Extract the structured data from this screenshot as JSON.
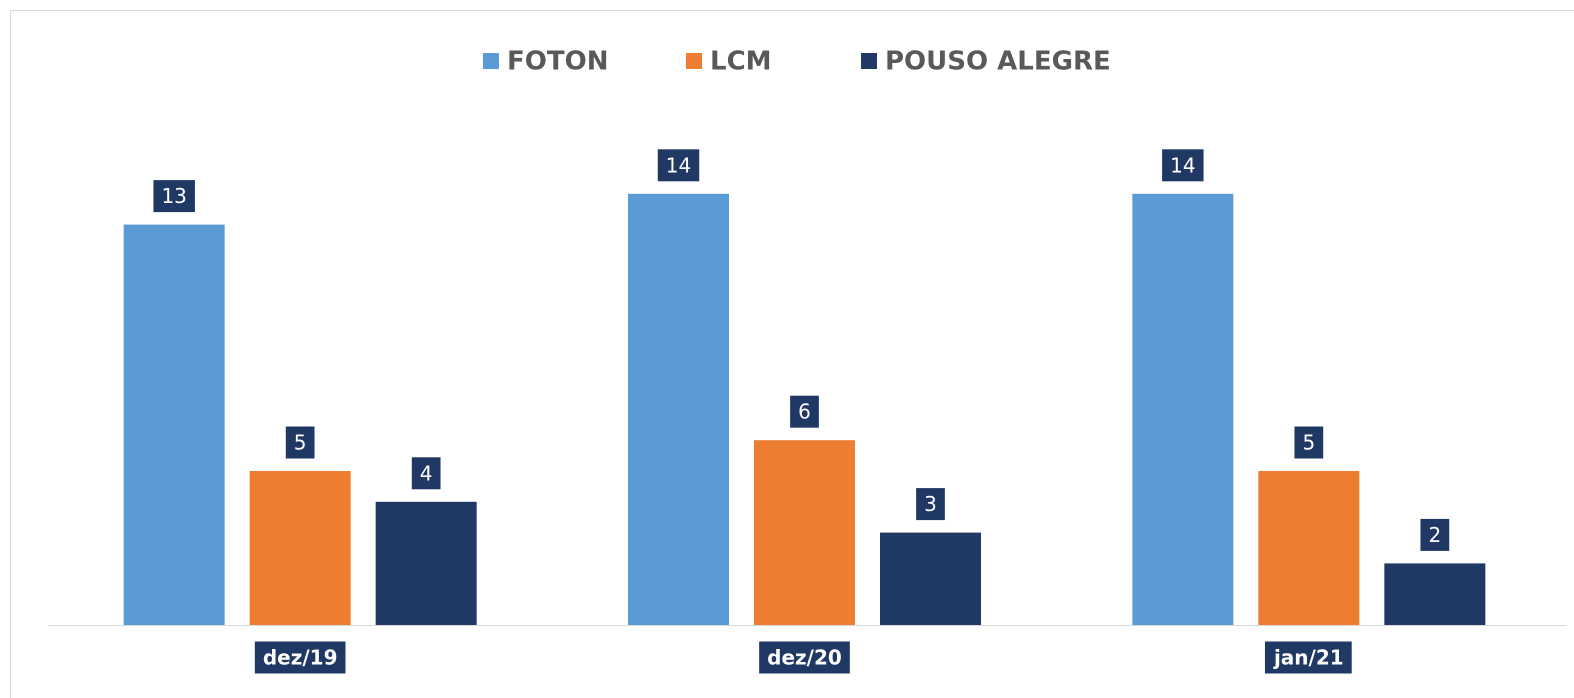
{
  "chart_data": {
    "type": "bar",
    "categories": [
      "dez/19",
      "dez/20",
      "jan/21"
    ],
    "series": [
      {
        "name": "FOTON",
        "color": "#5b9bd5",
        "values": [
          13,
          14,
          14
        ]
      },
      {
        "name": "LCM",
        "color": "#ed7d31",
        "values": [
          5,
          6,
          5
        ]
      },
      {
        "name": "POUSO ALEGRE",
        "color": "#203864",
        "values": [
          4,
          3,
          2
        ]
      }
    ],
    "ylim": [
      0,
      15
    ]
  }
}
